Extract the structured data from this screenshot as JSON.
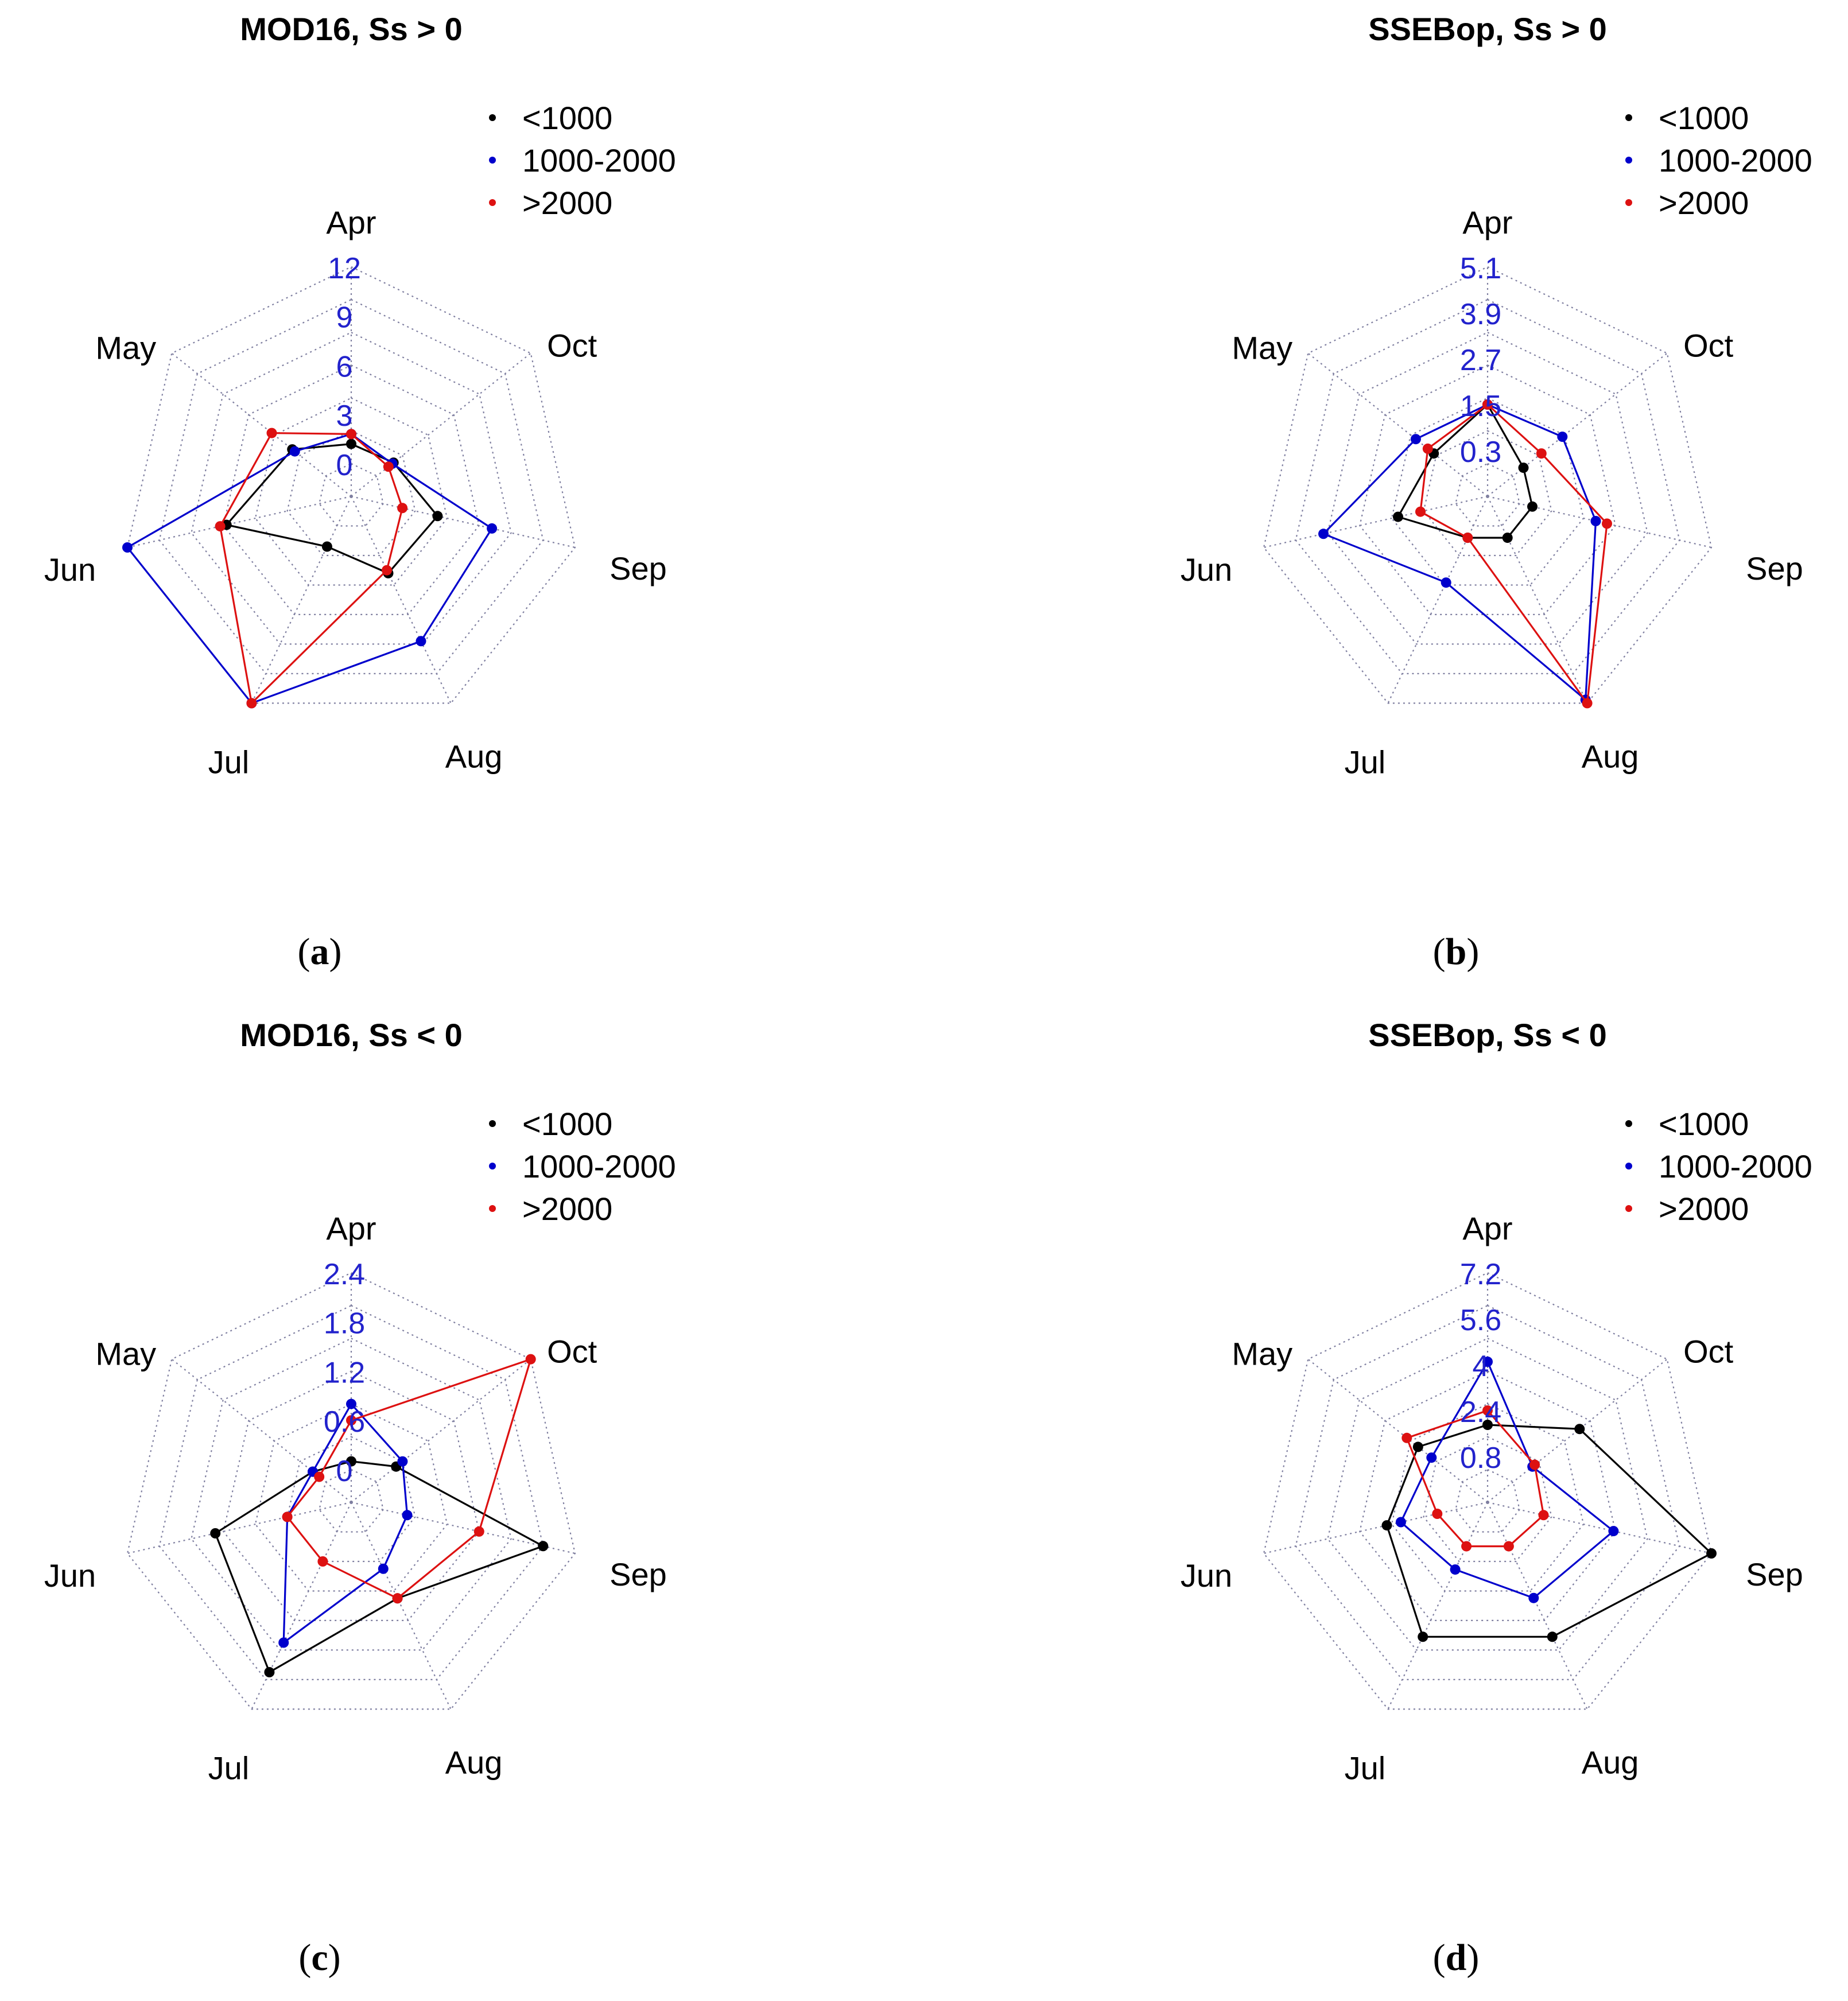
{
  "chart_data": [
    {
      "panel": "a",
      "type": "radar",
      "title": "MOD16, Ss > 0",
      "caption": "(a)",
      "categories": [
        "Apr",
        "Oct",
        "Sep",
        "Aug",
        "Jul",
        "Jun",
        "May"
      ],
      "rmin": -2,
      "rmax": 12,
      "ticks": [
        "0",
        "3",
        "6",
        "9",
        "12"
      ],
      "tick_values": [
        0,
        3,
        6,
        9,
        12
      ],
      "legend": [
        "<1000",
        "1000-2000",
        ">2000"
      ],
      "series": [
        {
          "name": "<1000",
          "color": "#000000",
          "values": [
            1.2,
            1.3,
            3.4,
            3.2,
            1.4,
            5.8,
            2.6
          ]
        },
        {
          "name": "1000-2000",
          "color": "#0000cc",
          "values": [
            1.8,
            1.2,
            6.8,
            7.8,
            12.0,
            12.0,
            2.4
          ]
        },
        {
          "name": ">2000",
          "color": "#dd1111",
          "values": [
            1.8,
            0.9,
            1.2,
            3.0,
            12.0,
            6.2,
            4.2
          ]
        }
      ]
    },
    {
      "panel": "b",
      "type": "radar",
      "title": "SSEBop, Ss > 0",
      "caption": "(b)",
      "categories": [
        "Apr",
        "Oct",
        "Sep",
        "Aug",
        "Jul",
        "Jun",
        "May"
      ],
      "rmin": -0.9,
      "rmax": 5.1,
      "ticks": [
        "0.3",
        "1.5",
        "2.7",
        "3.9",
        "5.1"
      ],
      "tick_values": [
        0.3,
        1.5,
        2.7,
        3.9,
        5.1
      ],
      "legend": [
        "<1000",
        "1000-2000",
        ">2000"
      ],
      "series": [
        {
          "name": "<1000",
          "color": "#000000",
          "values": [
            1.5,
            0.3,
            0.3,
            0.3,
            0.3,
            1.5,
            0.9
          ]
        },
        {
          "name": "1000-2000",
          "color": "#0000cc",
          "values": [
            1.5,
            1.6,
            2.0,
            5.0,
            1.6,
            3.5,
            1.5
          ]
        },
        {
          "name": ">2000",
          "color": "#dd1111",
          "values": [
            1.5,
            0.9,
            2.3,
            5.1,
            0.3,
            0.9,
            1.1
          ]
        }
      ]
    },
    {
      "panel": "c",
      "type": "radar",
      "title": "MOD16, Ss < 0",
      "caption": "(c)",
      "categories": [
        "Apr",
        "Oct",
        "Sep",
        "Aug",
        "Jul",
        "Jun",
        "May"
      ],
      "rmin": -0.4,
      "rmax": 2.4,
      "ticks": [
        "0",
        "0.6",
        "1.2",
        "1.8",
        "2.4"
      ],
      "tick_values": [
        0,
        0.6,
        1.2,
        1.8,
        2.4
      ],
      "legend": [
        "<1000",
        "1000-2000",
        ">2000"
      ],
      "series": [
        {
          "name": "<1000",
          "color": "#000000",
          "values": [
            0.1,
            0.3,
            2.0,
            0.9,
            1.9,
            1.3,
            0.2
          ]
        },
        {
          "name": "1000-2000",
          "color": "#0000cc",
          "values": [
            0.8,
            0.4,
            0.3,
            0.5,
            1.5,
            0.4,
            0.2
          ]
        },
        {
          "name": ">2000",
          "color": "#dd1111",
          "values": [
            0.6,
            2.4,
            1.2,
            0.9,
            0.4,
            0.4,
            0.1
          ]
        }
      ]
    },
    {
      "panel": "d",
      "type": "radar",
      "title": "SSEBop, Ss < 0",
      "caption": "(d)",
      "categories": [
        "Apr",
        "Oct",
        "Sep",
        "Aug",
        "Jul",
        "Jun",
        "May"
      ],
      "rmin": -0.8,
      "rmax": 7.2,
      "ticks": [
        "0.8",
        "2.4",
        "4",
        "5.6",
        "7.2"
      ],
      "tick_values": [
        0.8,
        2.4,
        4,
        5.6,
        7.2
      ],
      "legend": [
        "<1000",
        "1000-2000",
        ">2000"
      ],
      "series": [
        {
          "name": "<1000",
          "color": "#000000",
          "values": [
            1.9,
            3.3,
            7.2,
            4.4,
            4.4,
            2.8,
            2.3
          ]
        },
        {
          "name": "1000-2000",
          "color": "#0000cc",
          "values": [
            4.1,
            1.2,
            3.7,
            2.9,
            1.8,
            2.3,
            1.7
          ]
        },
        {
          "name": ">2000",
          "color": "#dd1111",
          "values": [
            2.4,
            1.3,
            1.2,
            0.9,
            0.9,
            1.0,
            2.8
          ]
        }
      ]
    }
  ]
}
